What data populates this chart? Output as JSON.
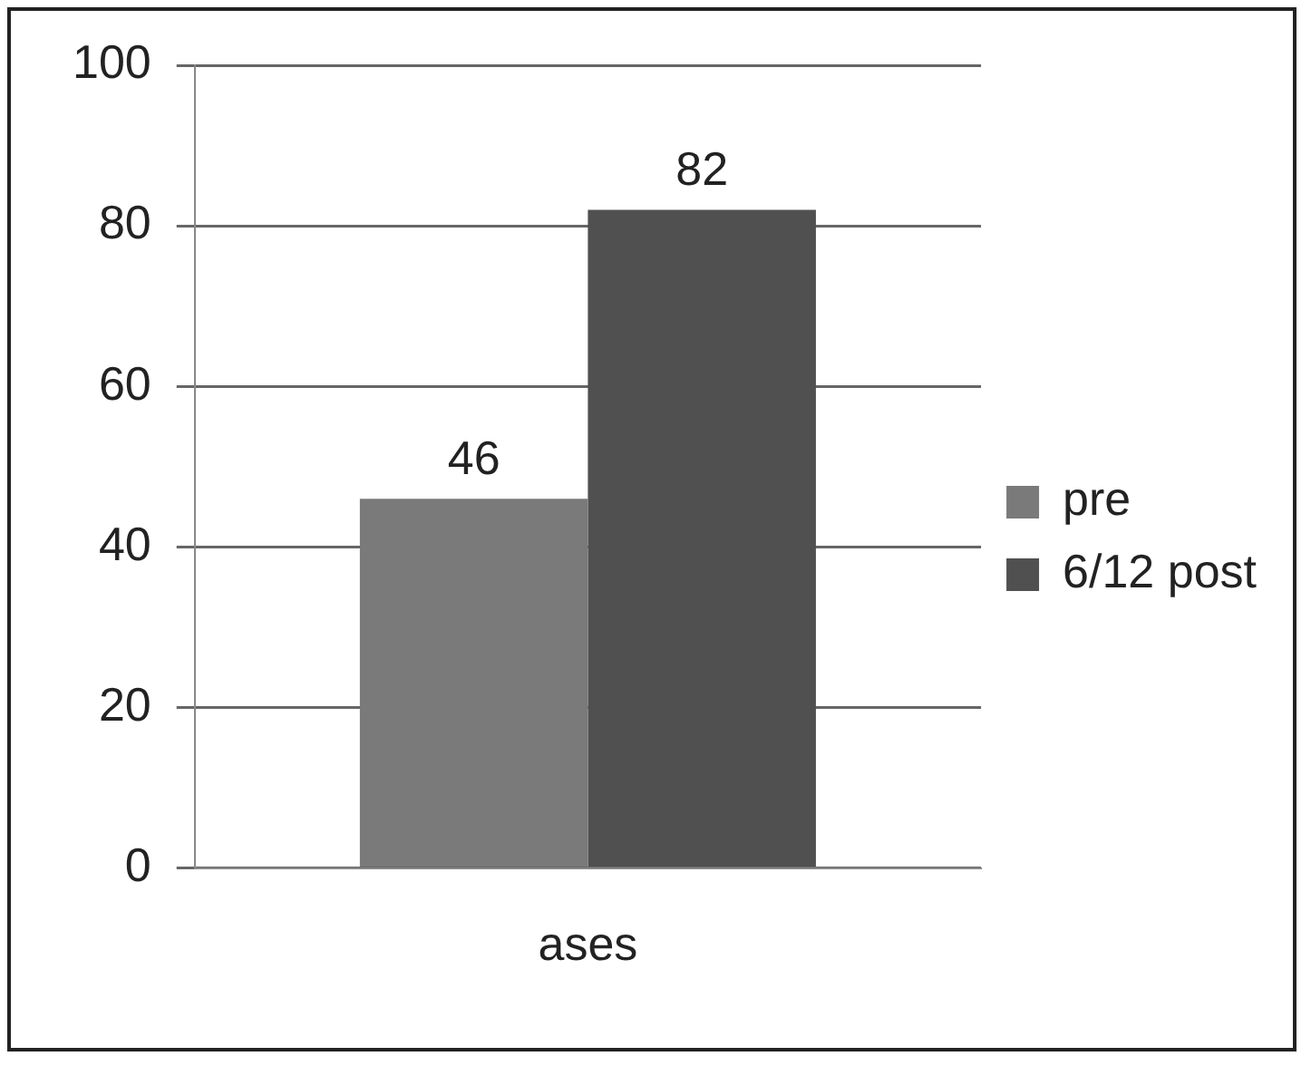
{
  "chart_data": {
    "type": "bar",
    "categories": [
      "ases"
    ],
    "series": [
      {
        "name": "pre",
        "color": "#7a7a7a",
        "values": [
          46
        ]
      },
      {
        "name": "6/12 post",
        "color": "#505050",
        "values": [
          82
        ]
      }
    ],
    "ylim": [
      0,
      100
    ],
    "yticks": [
      0,
      20,
      40,
      60,
      80,
      100
    ],
    "grid": "y",
    "legend": "right",
    "data_labels": true
  }
}
